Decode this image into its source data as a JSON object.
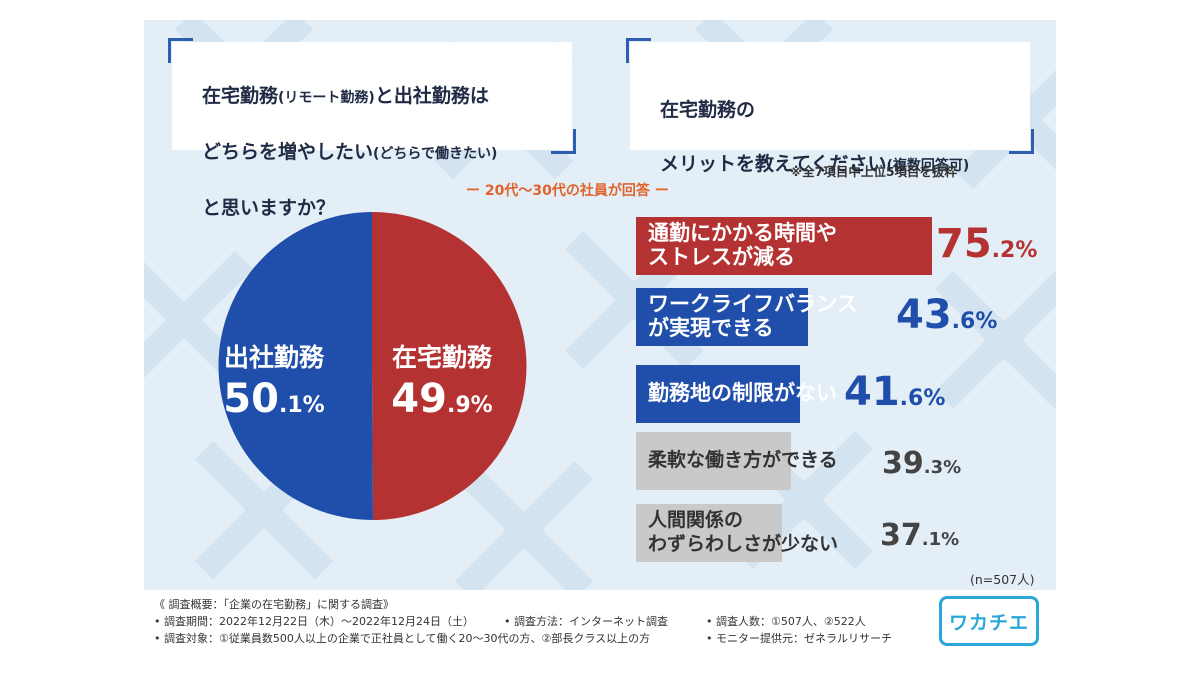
{
  "question_left": {
    "lines": [
      "在宅勤務",
      "(リモート勤務)",
      "と出社勤務は",
      "どちらを増やしたい",
      "(どちらで働きたい)",
      "と思いますか？"
    ]
  },
  "question_right": {
    "line1": "在宅勤務の",
    "line2": "メリットを教えてください",
    "line2_small": "(複数回答可)"
  },
  "note_top": "※全7項目中上位5項目を抜粋",
  "subheading": "ー 20代～30代の社員が回答 ー",
  "sample_size": "(n=507人)",
  "colors": {
    "red": "#b53232",
    "blue": "#1f4faa",
    "gray": "#c9c9c9",
    "panel_bg": "#e3eef7"
  },
  "chart_data": [
    {
      "type": "pie",
      "slices": [
        {
          "label": "在宅勤務",
          "value": 49.9,
          "value_int": "49",
          "value_dec": ".9%",
          "color": "#b53232"
        },
        {
          "label": "出社勤務",
          "value": 50.1,
          "value_int": "50",
          "value_dec": ".1%",
          "color": "#1f4faa"
        }
      ]
    },
    {
      "type": "bar",
      "orientation": "horizontal",
      "bars": [
        {
          "label": "通勤にかかる時間や\nストレスが減る",
          "value": 75.2,
          "value_int": "75",
          "value_dec": ".2%",
          "color": "#b53232"
        },
        {
          "label": "ワークライフバランス\nが実現できる",
          "value": 43.6,
          "value_int": "43",
          "value_dec": ".6%",
          "color": "#1f4faa"
        },
        {
          "label": "勤務地の制限がない",
          "value": 41.6,
          "value_int": "41",
          "value_dec": ".6%",
          "color": "#1f4faa"
        },
        {
          "label": "柔軟な働き方ができる",
          "value": 39.3,
          "value_int": "39",
          "value_dec": ".3%",
          "color": "#c9c9c9"
        },
        {
          "label": "人間関係の\nわずらわしさが少ない",
          "value": 37.1,
          "value_int": "37",
          "value_dec": ".1%",
          "color": "#c9c9c9"
        }
      ]
    }
  ],
  "footer": {
    "line1": "《 調査概要：「企業の在宅勤務」に関する調査》",
    "line2a": "• 調査期間：2022年12月22日（木）～2022年12月24日（土）",
    "line2b": "• 調査方法：インターネット調査",
    "line2c": "• 調査人数：①507人、②522人",
    "line3a": "• 調査対象：①従業員数500人以上の企業で正社員として働く20～30代の方、②部長クラス以上の方",
    "line3b": "• モニター提供元：ゼネラルリサーチ",
    "logo": "ワカチエ"
  }
}
